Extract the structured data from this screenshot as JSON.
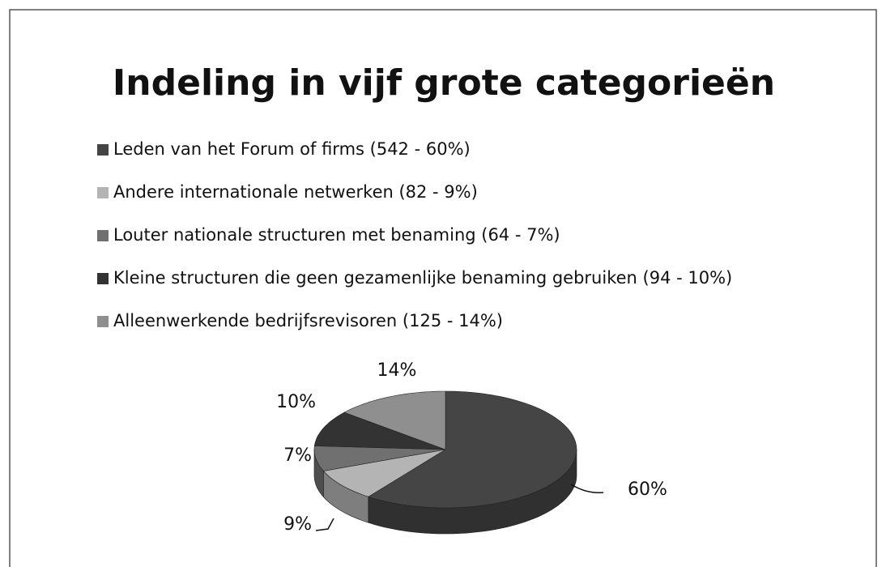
{
  "chart_data": {
    "type": "pie",
    "title": "Indeling in vijf grote categorieën",
    "categories": [
      "Leden van het Forum of firms (542 - 60%)",
      "Andere internationale netwerken (82 - 9%)",
      "Louter nationale structuren met benaming (64 - 7%)",
      "Kleine structuren die geen gezamenlijke benaming gebruiken (94 - 10%)",
      "Alleenwerkende bedrijfsrevisoren (125 - 14%)"
    ],
    "values": [
      60,
      9,
      7,
      10,
      14
    ],
    "value_labels": [
      "60%",
      "9%",
      "7%",
      "10%",
      "14%"
    ],
    "colors": [
      "#454545",
      "#b4b4b4",
      "#707070",
      "#333333",
      "#8f8f8f"
    ],
    "legend": "top"
  }
}
